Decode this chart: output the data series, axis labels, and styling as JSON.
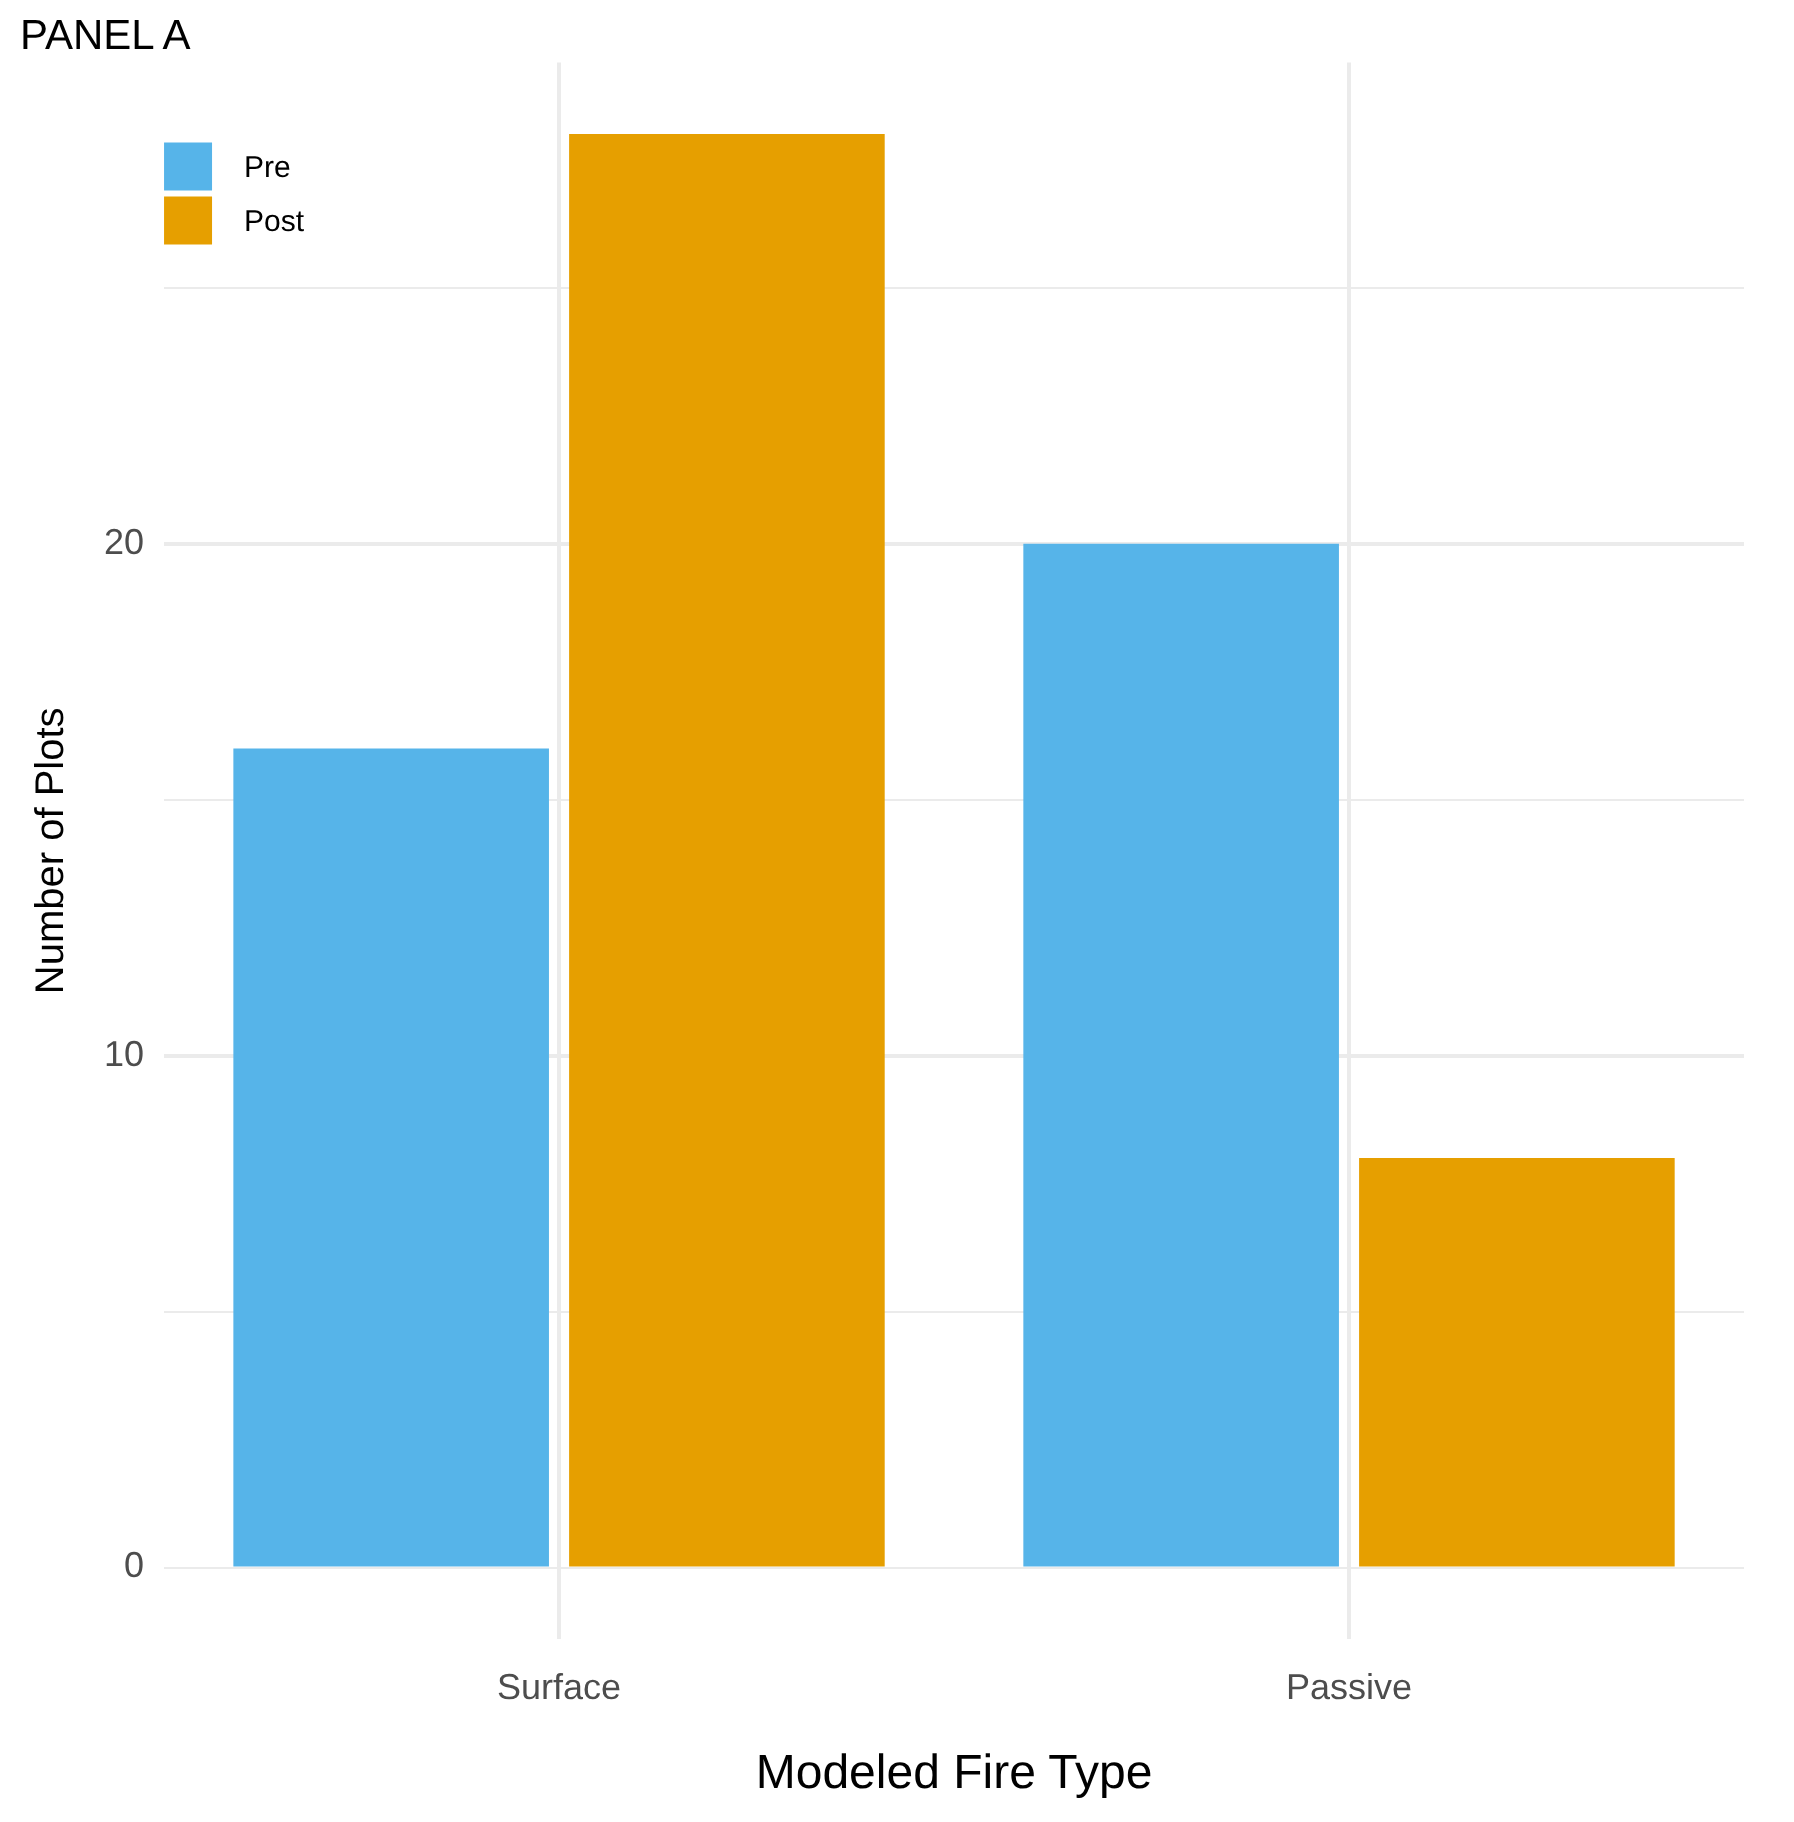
{
  "chart_data": {
    "type": "bar",
    "title": "PANEL A",
    "xlabel": "Modeled Fire Type",
    "ylabel": "Number of Plots",
    "categories": [
      "Surface",
      "Passive"
    ],
    "series": [
      {
        "name": "Pre",
        "color": "#56b4e9",
        "values": [
          16,
          20
        ]
      },
      {
        "name": "Post",
        "color": "#e69f00",
        "values": [
          28,
          8
        ]
      }
    ],
    "ylim": [
      -1.4,
      29.4
    ],
    "yticks": [
      0,
      {
        "value": 5,
        "label": null
      },
      10,
      {
        "value": 15,
        "label": null
      },
      20,
      {
        "value": 25,
        "label": null
      }
    ],
    "grid": true,
    "legend": "top left"
  }
}
